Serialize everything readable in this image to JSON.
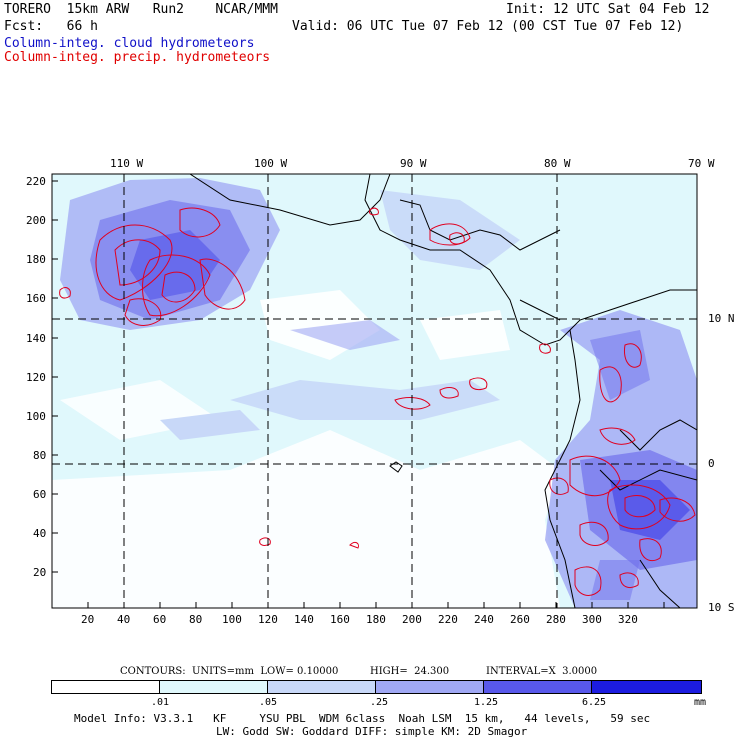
{
  "header": {
    "line1_left": "TORERO  15km ARW   Run2    NCAR/MMM",
    "line1_right": "Init: 12 UTC Sat 04 Feb 12",
    "line2_left": "Fcst:   66 h",
    "line2_right": "Valid: 06 UTC Tue 07 Feb 12 (00 CST Tue 07 Feb 12)",
    "line3": "Column-integ. cloud hydrometeors",
    "line4": "Column-integ. precip. hydrometeors"
  },
  "colors": {
    "cloud_label": "#1010c8",
    "precip_label": "#e00000",
    "contour": "#e00020",
    "shade_levels": [
      "#ffffff",
      "#e0f8fc",
      "#c8d8f8",
      "#a0a8f4",
      "#7070ec",
      "#4848e8",
      "#1c1ce0"
    ]
  },
  "lon_labels": [
    "110 W",
    "100 W",
    "90 W",
    "80 W",
    "70 W"
  ],
  "lat_labels": [
    "10 N",
    "0",
    "10 S"
  ],
  "x_ticks": [
    "20",
    "40",
    "60",
    "80",
    "100",
    "120",
    "140",
    "160",
    "180",
    "200",
    "220",
    "240",
    "260",
    "280",
    "300",
    "320"
  ],
  "y_ticks": [
    "220",
    "200",
    "180",
    "160",
    "140",
    "120",
    "100",
    "80",
    "60",
    "40",
    "20"
  ],
  "contour_info": {
    "label": "CONTOURS:  UNITS=mm  LOW= 0.10000",
    "high": "HIGH=  24.300",
    "interval": "INTERVAL=X  3.0000"
  },
  "colorbar": {
    "labels": [
      ".01",
      ".05",
      ".25",
      "1.25",
      "6.25"
    ],
    "units": "mm"
  },
  "footer": {
    "line1": "Model Info: V3.3.1   KF     YSU PBL  WDM 6class  Noah LSM  15 km,   44 levels,   59 sec",
    "line2": "LW: Godd SW: Goddard DIFF: simple KM: 2D Smagor"
  }
}
